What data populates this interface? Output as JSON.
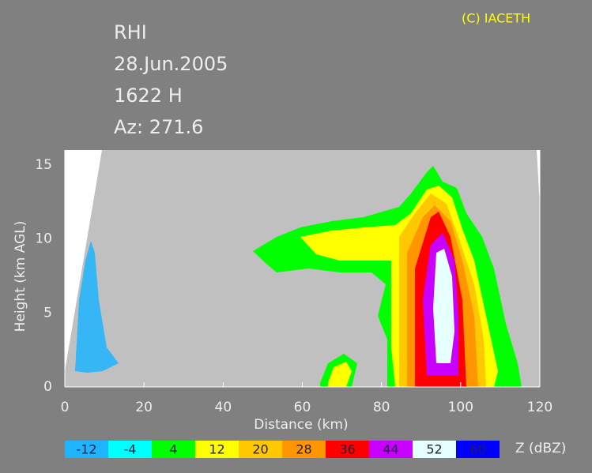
{
  "chart_data": {
    "type": "rhi",
    "title_lines": [
      "RHI",
      "28.Jun.2005",
      "1622 H",
      "Az: 271.6"
    ],
    "copyright": "(C) IACETH",
    "x_label": "Distance (km)",
    "y_label": "Height (km AGL)",
    "xlim": [
      0,
      120
    ],
    "xticks": [
      0,
      20,
      40,
      60,
      80,
      100,
      120
    ],
    "ylim": [
      0,
      16
    ],
    "yticks": [
      0,
      5,
      10,
      15
    ],
    "colorbar": {
      "label": "Z (dBZ)",
      "levels": [
        -12,
        -4,
        4,
        12,
        20,
        28,
        36,
        44,
        52,
        60
      ],
      "colors": [
        "#1eb4ff",
        "#00ffff",
        "#00ff00",
        "#ffff00",
        "#ffc800",
        "#ff9600",
        "#ff0000",
        "#c800ff",
        "#e6ffff",
        "#0000ff"
      ]
    }
  }
}
